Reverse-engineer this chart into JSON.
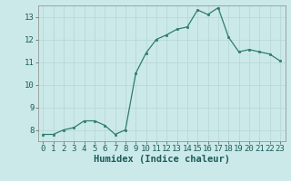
{
  "x": [
    0,
    1,
    2,
    3,
    4,
    5,
    6,
    7,
    8,
    9,
    10,
    11,
    12,
    13,
    14,
    15,
    16,
    17,
    18,
    19,
    20,
    21,
    22,
    23
  ],
  "y": [
    7.8,
    7.8,
    8.0,
    8.1,
    8.4,
    8.4,
    8.2,
    7.8,
    8.0,
    10.5,
    11.4,
    12.0,
    12.2,
    12.45,
    12.55,
    13.3,
    13.1,
    13.4,
    12.1,
    11.45,
    11.55,
    11.45,
    11.35,
    11.05
  ],
  "line_color": "#2e7d6e",
  "marker_color": "#2e7d6e",
  "bg_color": "#cce9e9",
  "grid_color": "#b8d8d8",
  "xlabel": "Humidex (Indice chaleur)",
  "xlim": [
    -0.5,
    23.5
  ],
  "ylim": [
    7.5,
    13.5
  ],
  "yticks": [
    8,
    9,
    10,
    11,
    12,
    13
  ],
  "xticks": [
    0,
    1,
    2,
    3,
    4,
    5,
    6,
    7,
    8,
    9,
    10,
    11,
    12,
    13,
    14,
    15,
    16,
    17,
    18,
    19,
    20,
    21,
    22,
    23
  ],
  "xlabel_fontsize": 7.5,
  "tick_fontsize": 6.5
}
